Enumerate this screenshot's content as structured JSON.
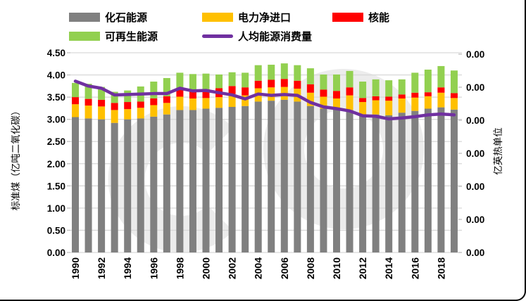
{
  "legend": {
    "items": [
      {
        "label": "化石能源",
        "color": "#808080",
        "swatch": "box"
      },
      {
        "label": "电力净进口",
        "color": "#FFC000",
        "swatch": "box"
      },
      {
        "label": "核能",
        "color": "#FF0000",
        "swatch": "box"
      },
      {
        "label": "可再生能源",
        "color": "#92D050",
        "swatch": "box"
      },
      {
        "label": "人均能源消费量",
        "color": "#7030A0",
        "swatch": "line"
      }
    ]
  },
  "axes": {
    "left": {
      "title": "标准煤（亿吨二氧化碳）",
      "ticks": [
        "4.50",
        "4.00",
        "3.50",
        "3.00",
        "2.50",
        "2.00",
        "1.50",
        "1.00",
        "0.50",
        "0.00"
      ],
      "range": [
        0,
        4.5
      ]
    },
    "right": {
      "title": "亿英热单位",
      "ticks": [
        "0.00",
        "0.00",
        "0.00",
        "0.00",
        "0.00",
        "0.00",
        "0.00"
      ]
    },
    "x": {
      "ticks": [
        "1990",
        "1992",
        "1994",
        "1996",
        "1998",
        "2000",
        "2002",
        "2004",
        "2006",
        "2008",
        "2010",
        "2012",
        "2014",
        "2016",
        "2018"
      ]
    }
  },
  "chart_data": {
    "type": "bar",
    "subtype": "stacked-bars-with-line",
    "title": "",
    "xlabel": "",
    "ylabel_left": "标准煤（亿吨二氧化碳）",
    "ylabel_right": "亿英热单位",
    "ylim_left": [
      0,
      4.5
    ],
    "grid": "horizontal",
    "legend_position": "top",
    "x": [
      1990,
      1991,
      1992,
      1993,
      1994,
      1995,
      1996,
      1997,
      1998,
      1999,
      2000,
      2001,
      2002,
      2003,
      2004,
      2005,
      2006,
      2007,
      2008,
      2009,
      2010,
      2011,
      2012,
      2013,
      2014,
      2015,
      2016,
      2017,
      2018,
      2019
    ],
    "series": [
      {
        "name": "化石能源",
        "color": "#808080",
        "values": [
          3.05,
          3.02,
          3.0,
          2.92,
          3.0,
          3.02,
          3.06,
          3.11,
          3.21,
          3.21,
          3.24,
          3.26,
          3.28,
          3.3,
          3.4,
          3.42,
          3.44,
          3.4,
          3.3,
          3.24,
          3.24,
          3.21,
          3.11,
          3.11,
          3.09,
          3.15,
          3.19,
          3.24,
          3.27,
          3.22
        ]
      },
      {
        "name": "电力净进口",
        "color": "#FFC000",
        "values": [
          0.29,
          0.29,
          0.29,
          0.29,
          0.23,
          0.24,
          0.26,
          0.26,
          0.3,
          0.26,
          0.24,
          0.24,
          0.29,
          0.24,
          0.3,
          0.3,
          0.29,
          0.29,
          0.3,
          0.27,
          0.23,
          0.33,
          0.28,
          0.32,
          0.33,
          0.32,
          0.3,
          0.28,
          0.33,
          0.26
        ]
      },
      {
        "name": "核能",
        "color": "#FF0000",
        "values": [
          0.16,
          0.15,
          0.15,
          0.16,
          0.16,
          0.14,
          0.15,
          0.15,
          0.15,
          0.17,
          0.2,
          0.2,
          0.18,
          0.18,
          0.17,
          0.17,
          0.18,
          0.18,
          0.19,
          0.16,
          0.17,
          0.18,
          0.09,
          0.09,
          0.09,
          0.09,
          0.11,
          0.09,
          0.12,
          0.11
        ]
      },
      {
        "name": "可再生能源",
        "color": "#92D050",
        "values": [
          0.32,
          0.34,
          0.29,
          0.25,
          0.26,
          0.34,
          0.38,
          0.41,
          0.39,
          0.38,
          0.35,
          0.31,
          0.31,
          0.33,
          0.35,
          0.34,
          0.35,
          0.35,
          0.36,
          0.34,
          0.37,
          0.37,
          0.37,
          0.38,
          0.37,
          0.34,
          0.45,
          0.51,
          0.48,
          0.51
        ]
      }
    ],
    "line_series": {
      "name": "人均能源消费量",
      "color": "#7030A0",
      "values": [
        3.86,
        3.75,
        3.7,
        3.55,
        3.56,
        3.57,
        3.58,
        3.58,
        3.7,
        3.64,
        3.65,
        3.6,
        3.55,
        3.46,
        3.57,
        3.54,
        3.56,
        3.54,
        3.38,
        3.28,
        3.24,
        3.19,
        3.08,
        3.07,
        3.01,
        3.03,
        3.06,
        3.1,
        3.12,
        3.1
      ]
    }
  },
  "colors": {
    "background": "#FFFFFF",
    "grid": "#D9D9D9",
    "tick_mark": "#BFBFBF",
    "axis_text": "#000000",
    "watermark": "#ECECEC",
    "border": "#000000"
  }
}
